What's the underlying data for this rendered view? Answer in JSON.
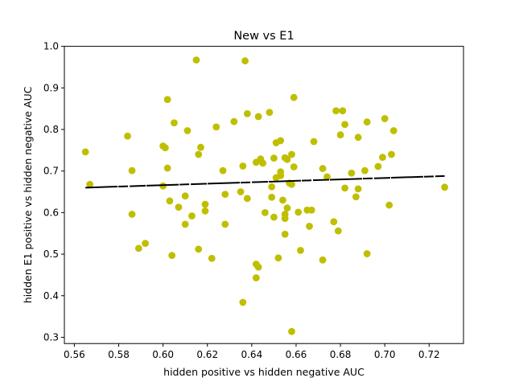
{
  "chart_data": {
    "type": "scatter",
    "title": "New vs E1",
    "xlabel": "hidden positive vs hidden negative  AUC",
    "ylabel": "hidden E1 positive vs hidden negative  AUC",
    "xlim": [
      0.5555,
      0.7355
    ],
    "ylim": [
      0.285,
      1.0
    ],
    "xticks": [
      0.56,
      0.58,
      0.6,
      0.62,
      0.64,
      0.66,
      0.68,
      0.7,
      0.72
    ],
    "yticks": [
      0.3,
      0.4,
      0.5,
      0.6,
      0.7,
      0.8,
      0.9,
      1.0
    ],
    "grid": false,
    "point_color": "#bfbf00",
    "line_color": "#000000",
    "trend_line": {
      "x": [
        0.565,
        0.727
      ],
      "y": [
        0.66,
        0.688
      ]
    },
    "points": [
      [
        0.565,
        0.746
      ],
      [
        0.567,
        0.668
      ],
      [
        0.584,
        0.784
      ],
      [
        0.586,
        0.701
      ],
      [
        0.586,
        0.596
      ],
      [
        0.589,
        0.514
      ],
      [
        0.592,
        0.526
      ],
      [
        0.6,
        0.664
      ],
      [
        0.6,
        0.76
      ],
      [
        0.601,
        0.756
      ],
      [
        0.602,
        0.707
      ],
      [
        0.602,
        0.872
      ],
      [
        0.603,
        0.628
      ],
      [
        0.604,
        0.497
      ],
      [
        0.605,
        0.816
      ],
      [
        0.607,
        0.613
      ],
      [
        0.61,
        0.572
      ],
      [
        0.61,
        0.64
      ],
      [
        0.611,
        0.797
      ],
      [
        0.613,
        0.592
      ],
      [
        0.615,
        0.967
      ],
      [
        0.616,
        0.512
      ],
      [
        0.616,
        0.74
      ],
      [
        0.617,
        0.757
      ],
      [
        0.619,
        0.604
      ],
      [
        0.619,
        0.62
      ],
      [
        0.622,
        0.49
      ],
      [
        0.624,
        0.806
      ],
      [
        0.627,
        0.701
      ],
      [
        0.628,
        0.644
      ],
      [
        0.628,
        0.572
      ],
      [
        0.632,
        0.819
      ],
      [
        0.635,
        0.65
      ],
      [
        0.636,
        0.712
      ],
      [
        0.636,
        0.384
      ],
      [
        0.637,
        0.965
      ],
      [
        0.638,
        0.838
      ],
      [
        0.638,
        0.634
      ],
      [
        0.642,
        0.721
      ],
      [
        0.642,
        0.476
      ],
      [
        0.642,
        0.443
      ],
      [
        0.643,
        0.831
      ],
      [
        0.643,
        0.469
      ],
      [
        0.644,
        0.729
      ],
      [
        0.645,
        0.719
      ],
      [
        0.646,
        0.6
      ],
      [
        0.648,
        0.841
      ],
      [
        0.649,
        0.662
      ],
      [
        0.649,
        0.637
      ],
      [
        0.65,
        0.589
      ],
      [
        0.65,
        0.731
      ],
      [
        0.651,
        0.768
      ],
      [
        0.651,
        0.684
      ],
      [
        0.652,
        0.491
      ],
      [
        0.653,
        0.698
      ],
      [
        0.653,
        0.773
      ],
      [
        0.653,
        0.689
      ],
      [
        0.654,
        0.63
      ],
      [
        0.655,
        0.586
      ],
      [
        0.655,
        0.596
      ],
      [
        0.655,
        0.732
      ],
      [
        0.655,
        0.548
      ],
      [
        0.656,
        0.611
      ],
      [
        0.656,
        0.728
      ],
      [
        0.657,
        0.671
      ],
      [
        0.658,
        0.74
      ],
      [
        0.658,
        0.668
      ],
      [
        0.658,
        0.314
      ],
      [
        0.659,
        0.71
      ],
      [
        0.659,
        0.877
      ],
      [
        0.661,
        0.601
      ],
      [
        0.662,
        0.509
      ],
      [
        0.665,
        0.606
      ],
      [
        0.666,
        0.567
      ],
      [
        0.667,
        0.606
      ],
      [
        0.668,
        0.771
      ],
      [
        0.672,
        0.706
      ],
      [
        0.672,
        0.486
      ],
      [
        0.674,
        0.686
      ],
      [
        0.677,
        0.578
      ],
      [
        0.678,
        0.845
      ],
      [
        0.679,
        0.556
      ],
      [
        0.68,
        0.787
      ],
      [
        0.681,
        0.845
      ],
      [
        0.682,
        0.812
      ],
      [
        0.682,
        0.659
      ],
      [
        0.685,
        0.695
      ],
      [
        0.687,
        0.638
      ],
      [
        0.688,
        0.657
      ],
      [
        0.688,
        0.781
      ],
      [
        0.691,
        0.701
      ],
      [
        0.692,
        0.818
      ],
      [
        0.692,
        0.501
      ],
      [
        0.697,
        0.711
      ],
      [
        0.699,
        0.733
      ],
      [
        0.7,
        0.826
      ],
      [
        0.702,
        0.618
      ],
      [
        0.703,
        0.74
      ],
      [
        0.704,
        0.797
      ],
      [
        0.727,
        0.661
      ]
    ]
  }
}
